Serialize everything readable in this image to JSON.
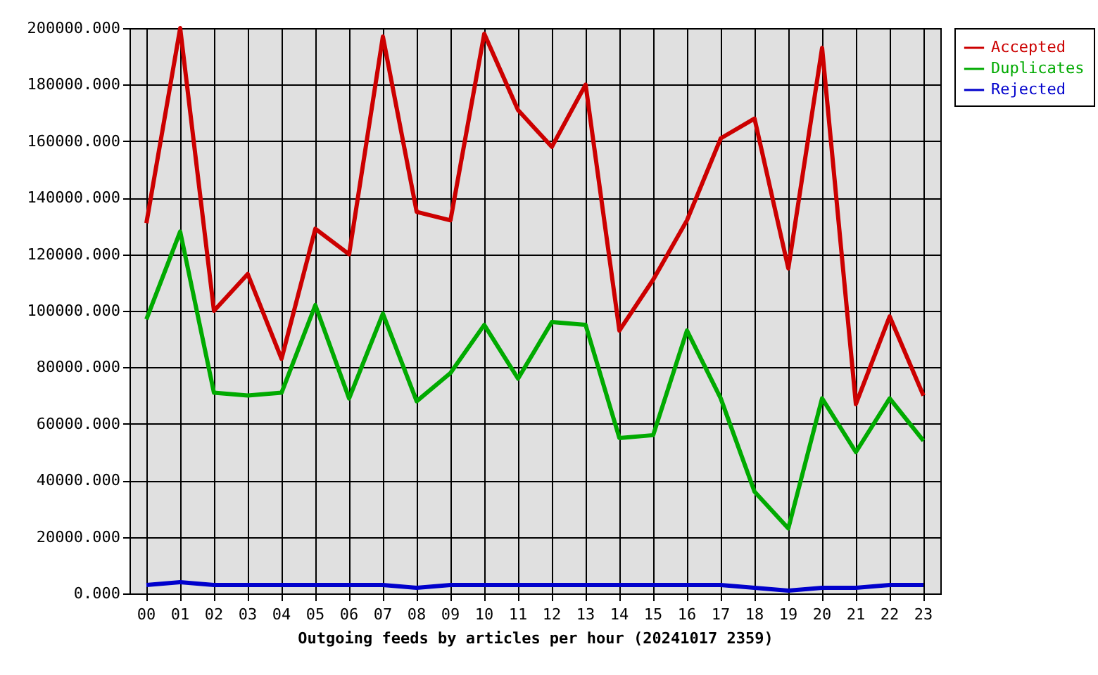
{
  "chart_data": {
    "type": "line",
    "xlabel": "Outgoing feeds by articles per hour (20241017 2359)",
    "categories": [
      "00",
      "01",
      "02",
      "03",
      "04",
      "05",
      "06",
      "07",
      "08",
      "09",
      "10",
      "11",
      "12",
      "13",
      "14",
      "15",
      "16",
      "17",
      "18",
      "19",
      "20",
      "21",
      "22",
      "23"
    ],
    "series": [
      {
        "name": "Accepted",
        "color": "#cc0000",
        "values": [
          131000,
          200000,
          100000,
          113000,
          83000,
          129000,
          120000,
          197000,
          135000,
          132000,
          198000,
          171000,
          158000,
          180000,
          93000,
          111000,
          132000,
          161000,
          168000,
          115000,
          193000,
          67000,
          98000,
          70000
        ]
      },
      {
        "name": "Duplicates",
        "color": "#00aa00",
        "values": [
          97000,
          128000,
          71000,
          70000,
          71000,
          102000,
          69000,
          99000,
          68000,
          78000,
          95000,
          76000,
          96000,
          95000,
          55000,
          56000,
          93000,
          69000,
          36000,
          23000,
          69000,
          50000,
          69000,
          54000
        ]
      },
      {
        "name": "Rejected",
        "color": "#0000cc",
        "values": [
          3000,
          4000,
          3000,
          3000,
          3000,
          3000,
          3000,
          3000,
          2000,
          3000,
          3000,
          3000,
          3000,
          3000,
          3000,
          3000,
          3000,
          3000,
          2000,
          1000,
          2000,
          2000,
          3000,
          3000
        ]
      }
    ],
    "ylim": [
      0,
      200000
    ],
    "yticks": [
      {
        "value": 0,
        "label": "0.000"
      },
      {
        "value": 20000,
        "label": "20000.000"
      },
      {
        "value": 40000,
        "label": "40000.000"
      },
      {
        "value": 60000,
        "label": "60000.000"
      },
      {
        "value": 80000,
        "label": "80000.000"
      },
      {
        "value": 100000,
        "label": "100000.000"
      },
      {
        "value": 120000,
        "label": "120000.000"
      },
      {
        "value": 140000,
        "label": "140000.000"
      },
      {
        "value": 160000,
        "label": "160000.000"
      },
      {
        "value": 180000,
        "label": "180000.000"
      },
      {
        "value": 200000,
        "label": "200000.000"
      }
    ],
    "grid": true,
    "legend": "top right"
  }
}
